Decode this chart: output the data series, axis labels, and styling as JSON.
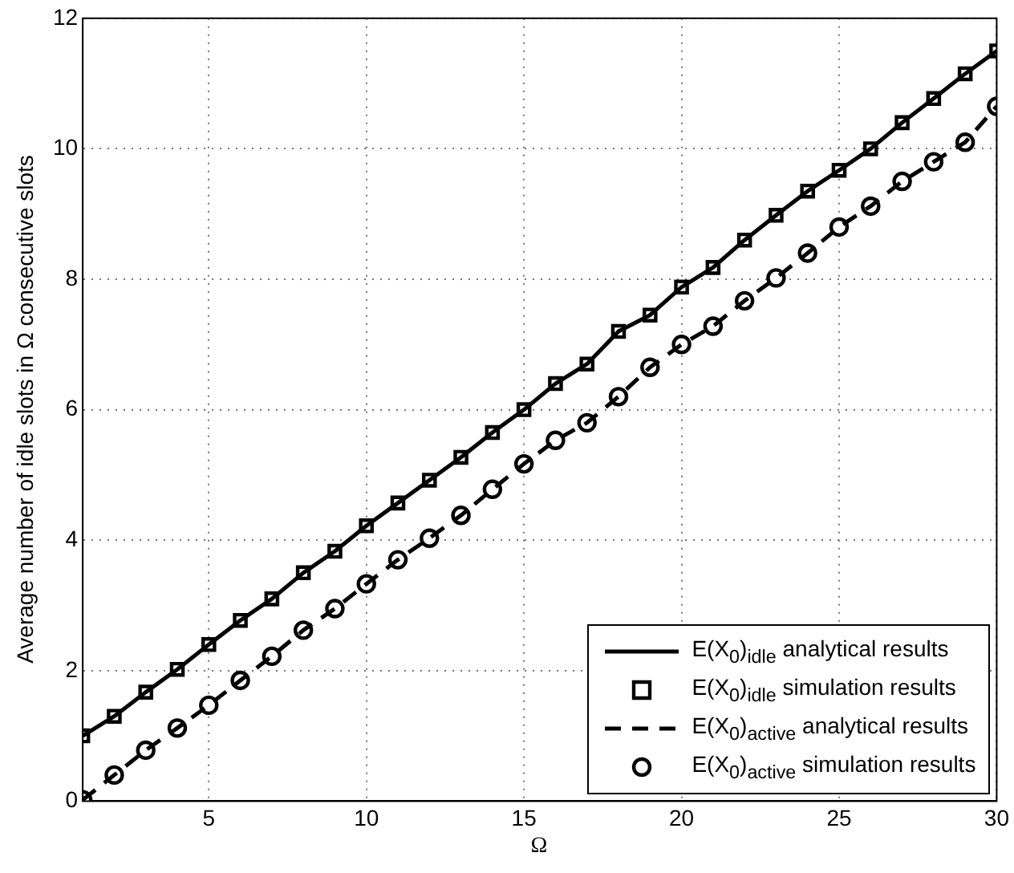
{
  "chart_data": {
    "type": "line",
    "xlabel": "Ω",
    "ylabel": "Average number of idle slots in Ω consecutive slots",
    "x": [
      1,
      2,
      3,
      4,
      5,
      6,
      7,
      8,
      9,
      10,
      11,
      12,
      13,
      14,
      15,
      16,
      17,
      18,
      19,
      20,
      21,
      22,
      23,
      24,
      25,
      26,
      27,
      28,
      29,
      30
    ],
    "series": [
      {
        "name": "E(X$_{0}$)$_{idle}$ analytical results",
        "type": "line",
        "color": "#000000",
        "line_style": "solid",
        "marker": "none",
        "values": [
          1.0,
          1.3,
          1.67,
          2.02,
          2.4,
          2.77,
          3.1,
          3.5,
          3.83,
          4.22,
          4.57,
          4.92,
          5.27,
          5.65,
          6.0,
          6.4,
          6.7,
          7.2,
          7.45,
          7.88,
          8.18,
          8.6,
          8.98,
          9.35,
          9.67,
          10.0,
          10.4,
          10.77,
          11.15,
          11.5
        ]
      },
      {
        "name": "E(X$_{0}$)$_{idle}$ simulation results",
        "type": "scatter",
        "color": "#000000",
        "marker": "square",
        "values": [
          1.0,
          1.3,
          1.67,
          2.02,
          2.4,
          2.77,
          3.1,
          3.5,
          3.83,
          4.22,
          4.57,
          4.92,
          5.27,
          5.65,
          6.0,
          6.4,
          6.7,
          7.2,
          7.45,
          7.88,
          8.18,
          8.6,
          8.98,
          9.35,
          9.67,
          10.0,
          10.4,
          10.77,
          11.15,
          11.5
        ]
      },
      {
        "name": "E(X$_{0}$)$_{active}$ analytical results",
        "type": "line",
        "color": "#000000",
        "line_style": "dashed",
        "marker": "none",
        "values": [
          0.02,
          0.4,
          0.78,
          1.12,
          1.47,
          1.85,
          2.22,
          2.62,
          2.95,
          3.33,
          3.7,
          4.03,
          4.38,
          4.78,
          5.17,
          5.53,
          5.8,
          6.2,
          6.65,
          7.0,
          7.28,
          7.67,
          8.02,
          8.4,
          8.8,
          9.12,
          9.5,
          9.8,
          10.1,
          10.65
        ]
      },
      {
        "name": "E(X$_{0}$)$_{active}$ simulation results",
        "type": "scatter",
        "color": "#000000",
        "marker": "circle",
        "values": [
          0.02,
          0.4,
          0.78,
          1.12,
          1.47,
          1.85,
          2.22,
          2.62,
          2.95,
          3.33,
          3.7,
          4.03,
          4.38,
          4.78,
          5.17,
          5.53,
          5.8,
          6.2,
          6.65,
          7.0,
          7.28,
          7.67,
          8.02,
          8.4,
          8.8,
          9.12,
          9.5,
          9.8,
          10.1,
          10.65
        ]
      }
    ],
    "xlim": [
      1,
      30
    ],
    "xticks": [
      5,
      10,
      15,
      20,
      25,
      30
    ],
    "ylim": [
      0,
      12
    ],
    "yticks": [
      0,
      2,
      4,
      6,
      8,
      10,
      12
    ],
    "grid": true,
    "legend": "bottom right"
  }
}
